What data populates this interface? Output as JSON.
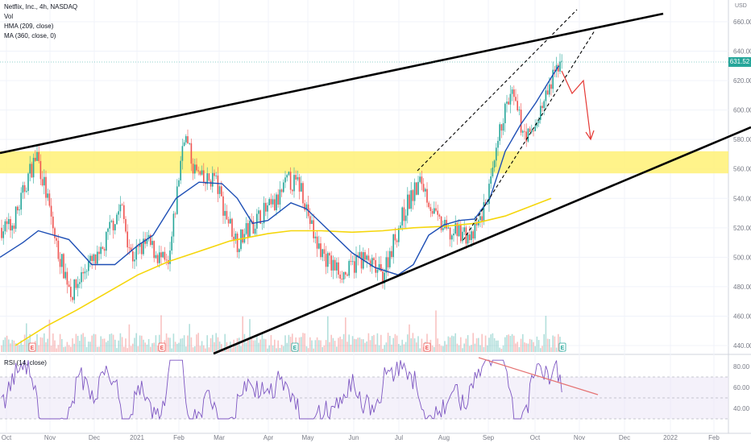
{
  "legend": {
    "symbol": "Netflix, Inc., 4h, NASDAQ",
    "vol": "Vol",
    "hma": "HMA (209, close)",
    "ma": "MA (360, close, 0)",
    "rsi": "RSI (14, close)"
  },
  "currency": "USD",
  "last_price": "631.52",
  "colors": {
    "up": "#26a69a",
    "down": "#ef5350",
    "hma": "#1e4fb5",
    "ma": "#f5d60c",
    "zone": "#fff176",
    "rsi": "#7e57c2",
    "rsi_band": "#ede7f6",
    "annotation": "#e53935",
    "trend": "#000000",
    "last_price_tag": "#26a69a"
  },
  "chart_data": [
    {
      "type": "candlestick",
      "title": "Netflix, Inc., 4h, NASDAQ",
      "x_ticks": [
        "Oct",
        "Nov",
        "Dec",
        "2021",
        "Feb",
        "Mar",
        "Apr",
        "May",
        "Jun",
        "Jul",
        "Aug",
        "Sep",
        "Oct",
        "Nov",
        "Dec",
        "2022",
        "Feb"
      ],
      "y_ticks": [
        440,
        460,
        480,
        500,
        520,
        540,
        560,
        580,
        600,
        620,
        640,
        660
      ],
      "ylim": [
        432,
        668
      ],
      "price_path": [
        [
          "Oct",
          520
        ],
        [
          "Oct",
          535
        ],
        [
          "Oct",
          555
        ],
        [
          "Oct",
          570
        ],
        [
          "Oct",
          545
        ],
        [
          "Nov",
          505
        ],
        [
          "Nov",
          475
        ],
        [
          "Nov",
          495
        ],
        [
          "Dec",
          498
        ],
        [
          "Dec",
          520
        ],
        [
          "Dec",
          535
        ],
        [
          "Dec",
          500
        ],
        [
          "2021",
          510
        ],
        [
          "2021",
          492
        ],
        [
          "Feb",
          585
        ],
        [
          "Feb",
          560
        ],
        [
          "Feb",
          550
        ],
        [
          "Feb",
          555
        ],
        [
          "Mar",
          530
        ],
        [
          "Mar",
          510
        ],
        [
          "Mar",
          520
        ],
        [
          "Mar",
          530
        ],
        [
          "Apr",
          535
        ],
        [
          "Apr",
          552
        ],
        [
          "Apr",
          548
        ],
        [
          "May",
          510
        ],
        [
          "May",
          495
        ],
        [
          "May",
          488
        ],
        [
          "Jun",
          500
        ],
        [
          "Jun",
          495
        ],
        [
          "Jun",
          487
        ],
        [
          "Jun",
          510
        ],
        [
          "Jul",
          535
        ],
        [
          "Jul",
          552
        ],
        [
          "Jul",
          525
        ],
        [
          "Aug",
          515
        ],
        [
          "Aug",
          518
        ],
        [
          "Aug",
          512
        ],
        [
          "Aug",
          530
        ],
        [
          "Sep",
          555
        ],
        [
          "Sep",
          595
        ],
        [
          "Sep",
          610
        ],
        [
          "Sep",
          590
        ],
        [
          "Sep",
          580
        ],
        [
          "Oct",
          600
        ],
        [
          "Oct",
          618
        ],
        [
          "Oct",
          640
        ],
        [
          "Oct",
          632
        ]
      ],
      "series": [
        {
          "name": "HMA (209, close)",
          "values": [
            [
              0,
              500
            ],
            [
              0.03,
              510
            ],
            [
              0.05,
              518
            ],
            [
              0.09,
              512
            ],
            [
              0.12,
              495
            ],
            [
              0.15,
              495
            ],
            [
              0.18,
              508
            ],
            [
              0.2,
              515
            ],
            [
              0.23,
              540
            ],
            [
              0.26,
              551
            ],
            [
              0.29,
              550
            ],
            [
              0.31,
              540
            ],
            [
              0.33,
              523
            ],
            [
              0.35,
              525
            ],
            [
              0.38,
              537
            ],
            [
              0.4,
              533
            ],
            [
              0.43,
              518
            ],
            [
              0.46,
              503
            ],
            [
              0.49,
              493
            ],
            [
              0.52,
              488
            ],
            [
              0.54,
              495
            ],
            [
              0.56,
              515
            ],
            [
              0.58,
              522
            ],
            [
              0.6,
              525
            ],
            [
              0.62,
              526
            ],
            [
              0.64,
              540
            ],
            [
              0.66,
              572
            ],
            [
              0.68,
              590
            ],
            [
              0.7,
              605
            ],
            [
              0.72,
              622
            ],
            [
              0.73,
              630
            ]
          ]
        },
        {
          "name": "MA (360, close, 0)",
          "values": [
            [
              0.02,
              440
            ],
            [
              0.06,
              453
            ],
            [
              0.1,
              464
            ],
            [
              0.14,
              476
            ],
            [
              0.18,
              488
            ],
            [
              0.22,
              497
            ],
            [
              0.26,
              504
            ],
            [
              0.3,
              511
            ],
            [
              0.35,
              516
            ],
            [
              0.38,
              518
            ],
            [
              0.42,
              518
            ],
            [
              0.46,
              517
            ],
            [
              0.5,
              518
            ],
            [
              0.54,
              520
            ],
            [
              0.58,
              521
            ],
            [
              0.62,
              523
            ],
            [
              0.66,
              528
            ],
            [
              0.69,
              534
            ],
            [
              0.72,
              540
            ]
          ]
        },
        {
          "name": "RSI (14, close)",
          "ylim": [
            30,
            90
          ],
          "y_ticks": [
            40,
            60,
            80
          ]
        }
      ],
      "annotations": {
        "resistance_zone": [
          557,
          572
        ],
        "earnings_markers": [
          "E",
          "E",
          "E",
          "E",
          "E"
        ]
      }
    }
  ]
}
